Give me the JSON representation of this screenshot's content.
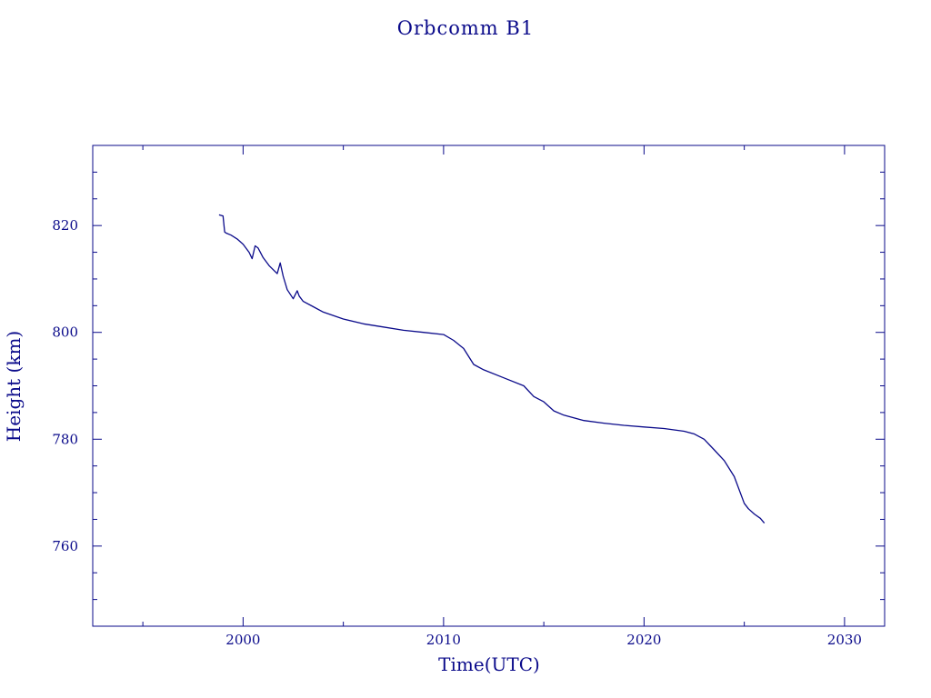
{
  "chart_data": {
    "type": "line",
    "title": "Orbcomm B1",
    "xlabel": "Time(UTC)",
    "ylabel": "Height (km)",
    "xlim": [
      1992.5,
      2032
    ],
    "ylim": [
      745,
      835
    ],
    "x_ticks": [
      2000,
      2010,
      2020,
      2030
    ],
    "y_ticks": [
      760,
      780,
      800,
      820
    ],
    "x_tick_labels": [
      "2000",
      "2010",
      "2020",
      "2030"
    ],
    "y_tick_labels": [
      "760",
      "780",
      "800",
      "820"
    ],
    "grid": false,
    "color": "#0a0a8a",
    "series": [
      {
        "x": [
          1998.8,
          1999.0,
          1999.08,
          1999.15,
          1999.4,
          1999.7,
          2000.0,
          2000.3,
          2000.45,
          2000.6,
          2000.75,
          2001.0,
          2001.3,
          2001.7,
          2001.85,
          2002.0,
          2002.2,
          2002.5,
          2002.7,
          2002.8,
          2003.0,
          2003.5,
          2004.0,
          2005.0,
          2006.0,
          2007.0,
          2008.0,
          2009.0,
          2010.0,
          2010.5,
          2011.0,
          2011.5,
          2012.0,
          2013.0,
          2014.0,
          2014.5,
          2015.0,
          2015.5,
          2016.0,
          2017.0,
          2018.0,
          2019.0,
          2020.0,
          2021.0,
          2022.0,
          2022.5,
          2023.0,
          2023.5,
          2024.0,
          2024.5,
          2025.0,
          2025.2,
          2025.5,
          2025.8,
          2026.0
        ],
        "y": [
          822.0,
          821.8,
          818.8,
          818.6,
          818.2,
          817.5,
          816.5,
          815.0,
          813.8,
          816.2,
          815.8,
          814.0,
          812.5,
          811.0,
          813.0,
          810.5,
          808.0,
          806.3,
          807.8,
          806.8,
          805.8,
          804.8,
          803.8,
          802.5,
          801.6,
          801.0,
          800.4,
          800.0,
          799.6,
          798.5,
          797.0,
          794.0,
          793.0,
          791.5,
          790.0,
          788.0,
          787.0,
          785.3,
          784.5,
          783.5,
          783.0,
          782.6,
          782.3,
          782.0,
          781.5,
          781.0,
          780.0,
          778.0,
          776.0,
          773.0,
          768.0,
          767.0,
          766.0,
          765.2,
          764.3
        ]
      }
    ]
  }
}
